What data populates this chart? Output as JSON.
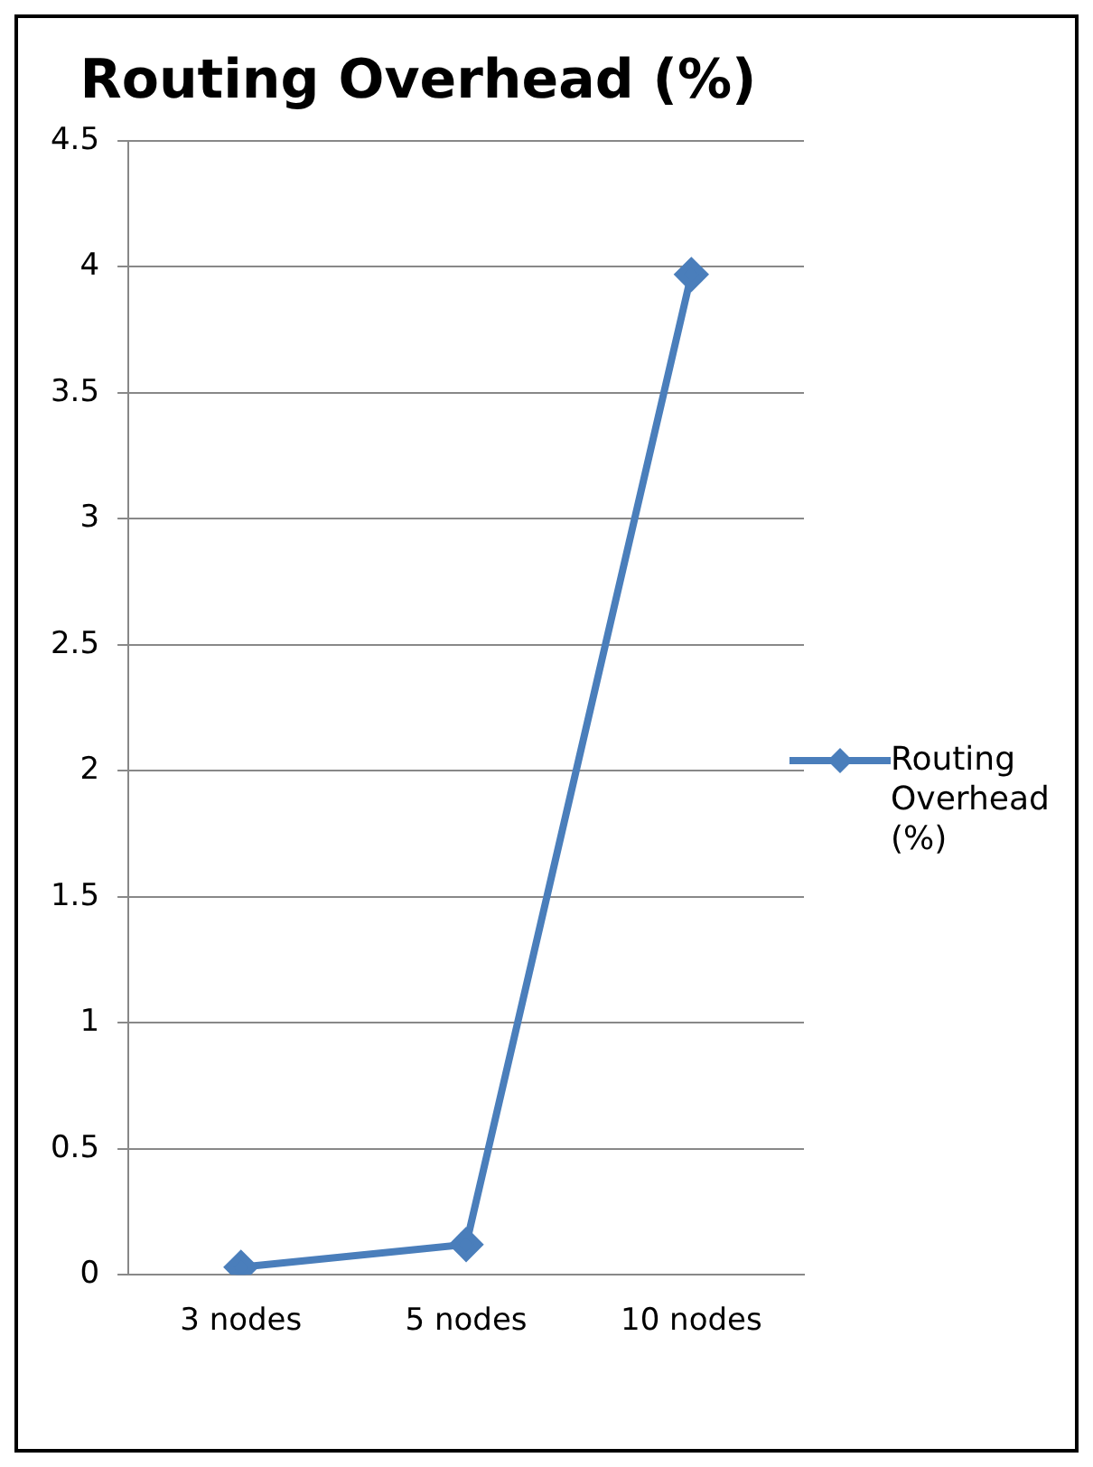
{
  "chart_data": {
    "type": "line",
    "title": "Routing Overhead (%)",
    "categories": [
      "3 nodes",
      "5 nodes",
      "10 nodes"
    ],
    "series": [
      {
        "name": "Routing Overhead (%)",
        "color": "#4a7ebb",
        "values": [
          0.03,
          0.12,
          3.97
        ]
      }
    ],
    "ylim": [
      0,
      4.5
    ],
    "yticks": [
      0,
      0.5,
      1,
      1.5,
      2,
      2.5,
      3,
      3.5,
      4,
      4.5
    ],
    "grid": "y",
    "legend": "right",
    "marker": "diamond",
    "line_style": "solid"
  }
}
